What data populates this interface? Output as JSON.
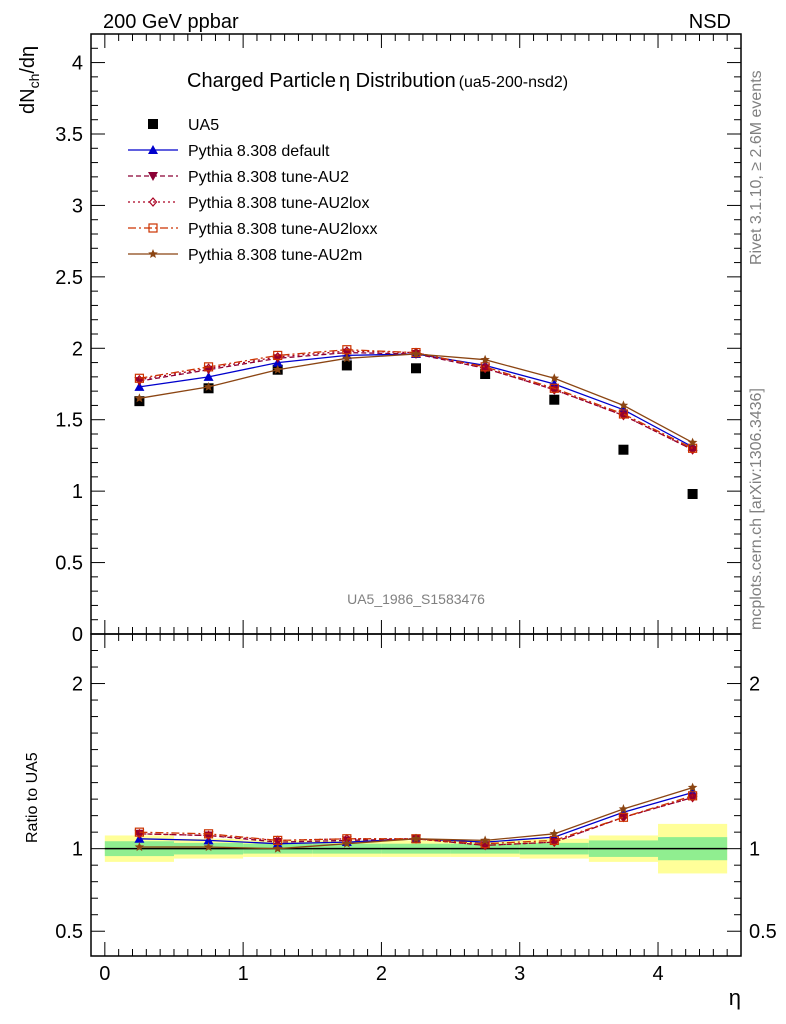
{
  "header": {
    "left": "200 GeV ppbar",
    "right": "NSD",
    "title": "Charged Particle",
    "title_symbol": "η",
    "title_rest": " Distribution",
    "title_tag": "(ua5-200-nsd2)",
    "watermark": "UA5_1986_S1583476",
    "side_top": "Rivet 3.1.10, ≥ 2.6M events",
    "side_bottom": "mcplots.cern.ch [arXiv:1306.3436]"
  },
  "colors": {
    "data": "#000000",
    "default": "#0000cc",
    "au2": "#8b0035",
    "au2lox": "#aa0022",
    "au2loxx": "#cc3300",
    "au2m": "#8b4513",
    "band_inner": "#90ee90",
    "band_outer": "#ffff99"
  },
  "chart_data": [
    {
      "type": "scatter",
      "panel": "main",
      "ylabel_main": "dN",
      "ylabel_sub": "ch",
      "ylabel_tail": "/dη",
      "xlim": [
        -0.1,
        4.6
      ],
      "ylim": [
        0,
        4.2
      ],
      "yticks": [
        "0",
        "0.5",
        "1",
        "1.5",
        "2",
        "2.5",
        "3",
        "3.5",
        "4"
      ],
      "x": [
        0.25,
        0.75,
        1.25,
        1.75,
        2.25,
        2.75,
        3.25,
        3.75,
        4.25
      ],
      "series": [
        {
          "key": "ua5",
          "name": "UA5",
          "marker": "square",
          "values": [
            1.63,
            1.72,
            1.85,
            1.88,
            1.86,
            1.82,
            1.64,
            1.29,
            0.98
          ]
        },
        {
          "key": "default",
          "name": "Pythia 8.308 default",
          "marker": "triangle",
          "dash": "",
          "values": [
            1.73,
            1.8,
            1.9,
            1.95,
            1.96,
            1.88,
            1.75,
            1.57,
            1.31
          ]
        },
        {
          "key": "au2",
          "name": "Pythia 8.308 tune-AU2",
          "marker": "triangle-down",
          "dash": "5,3",
          "values": [
            1.77,
            1.85,
            1.93,
            1.97,
            1.96,
            1.86,
            1.71,
            1.53,
            1.29
          ]
        },
        {
          "key": "au2lox",
          "name": "Pythia 8.308 tune-AU2lox",
          "marker": "diamond",
          "dash": "2,3",
          "values": [
            1.78,
            1.86,
            1.94,
            1.98,
            1.97,
            1.86,
            1.71,
            1.53,
            1.29
          ]
        },
        {
          "key": "au2loxx",
          "name": "Pythia 8.308 tune-AU2loxx",
          "marker": "open-square",
          "dash": "8,3,2,3",
          "values": [
            1.79,
            1.87,
            1.95,
            1.99,
            1.97,
            1.87,
            1.72,
            1.54,
            1.3
          ]
        },
        {
          "key": "au2m",
          "name": "Pythia 8.308 tune-AU2m",
          "marker": "star",
          "dash": "",
          "values": [
            1.65,
            1.73,
            1.85,
            1.93,
            1.96,
            1.92,
            1.79,
            1.6,
            1.34
          ]
        }
      ]
    },
    {
      "type": "line",
      "panel": "ratio",
      "ylabel": "Ratio to UA5",
      "xlabel": "η",
      "xlim": [
        -0.1,
        4.6
      ],
      "ylim": [
        0.35,
        2.3
      ],
      "xticks": [
        "0",
        "1",
        "2",
        "3",
        "4"
      ],
      "yticks": [
        "0.5",
        "1",
        "2"
      ],
      "x": [
        0.25,
        0.75,
        1.25,
        1.75,
        2.25,
        2.75,
        3.25,
        3.75,
        4.25
      ],
      "bins": [
        [
          0,
          0.5
        ],
        [
          0.5,
          1
        ],
        [
          1,
          1.5
        ],
        [
          1.5,
          2
        ],
        [
          2,
          2.5
        ],
        [
          2.5,
          3
        ],
        [
          3,
          3.5
        ],
        [
          3.5,
          4
        ],
        [
          4,
          4.5
        ]
      ],
      "band_inner": [
        0.045,
        0.035,
        0.03,
        0.03,
        0.03,
        0.03,
        0.035,
        0.05,
        0.07
      ],
      "band_outer": [
        0.08,
        0.06,
        0.05,
        0.05,
        0.05,
        0.05,
        0.06,
        0.08,
        0.15
      ],
      "series": [
        {
          "key": "default",
          "values": [
            1.06,
            1.05,
            1.03,
            1.04,
            1.06,
            1.04,
            1.07,
            1.22,
            1.34
          ]
        },
        {
          "key": "au2",
          "values": [
            1.09,
            1.08,
            1.04,
            1.05,
            1.06,
            1.02,
            1.04,
            1.19,
            1.31
          ]
        },
        {
          "key": "au2lox",
          "values": [
            1.09,
            1.08,
            1.05,
            1.06,
            1.06,
            1.02,
            1.04,
            1.19,
            1.31
          ]
        },
        {
          "key": "au2loxx",
          "values": [
            1.1,
            1.09,
            1.05,
            1.06,
            1.06,
            1.03,
            1.05,
            1.19,
            1.32
          ]
        },
        {
          "key": "au2m",
          "values": [
            1.01,
            1.01,
            1.0,
            1.03,
            1.06,
            1.05,
            1.09,
            1.24,
            1.37
          ]
        }
      ]
    }
  ]
}
